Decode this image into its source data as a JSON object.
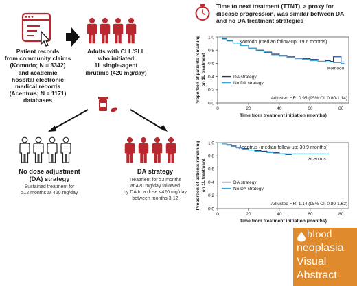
{
  "left": {
    "patient_records": [
      "Patient records",
      "from community claims",
      "(Komodo; N = 3342)",
      "and academic",
      "hospital electronic",
      "medical records",
      "(Acentrus; N = 1171)",
      "databases"
    ],
    "adults": [
      "Adults with CLL/SLL",
      "who initiated",
      "1L single-agent",
      "ibrutinib (420 mg/day)"
    ],
    "no_da_title": [
      "No dose adjustment",
      "(DA) strategy"
    ],
    "no_da_desc": [
      "Sustained treatment for",
      "≥12 months at 420 mg/day"
    ],
    "da_title": "DA strategy",
    "da_desc": [
      "Treatment for ≥3 months",
      "at 420 mg/day followed",
      "by DA to a dose <420 mg/day",
      "between months 3-12"
    ]
  },
  "header": {
    "title_lines": [
      "Time to next treatment (TTNT), a proxy for",
      "disease progression, was similar between DA",
      "and no DA treatment strategies"
    ]
  },
  "colors": {
    "red": "#b8282e",
    "dark_line": "#243b6b",
    "light_line": "#3aa9dc",
    "badge": "#e08a2e"
  },
  "chart_data": [
    {
      "type": "line",
      "title": "Komodo (median follow-up: 19.6 months)",
      "xlabel": "Time from treatment initiation (months)",
      "ylabel": [
        "Proportion of patients remaining",
        "on 1L treatment"
      ],
      "xlim": [
        0,
        85
      ],
      "ylim": [
        0,
        1.0
      ],
      "xticks": [
        0,
        20,
        40,
        60,
        80
      ],
      "yticks": [
        0.0,
        0.2,
        0.4,
        0.6,
        0.8,
        1.0
      ],
      "yticklabels": [
        "0.0",
        "0.2",
        "0.4",
        "0.6",
        "0.8",
        "1.0"
      ],
      "series": [
        {
          "name": "DA strategy",
          "x": [
            0,
            3,
            6,
            10,
            15,
            20,
            25,
            30,
            35,
            40,
            45,
            50,
            55,
            60,
            65,
            70,
            73,
            75,
            78,
            80,
            82
          ],
          "y": [
            1.0,
            0.97,
            0.94,
            0.91,
            0.87,
            0.83,
            0.8,
            0.77,
            0.74,
            0.72,
            0.7,
            0.68,
            0.67,
            0.66,
            0.65,
            0.64,
            0.63,
            0.7,
            0.7,
            0.62,
            0.62
          ]
        },
        {
          "name": "No DA strategy",
          "x": [
            0,
            3,
            6,
            10,
            15,
            20,
            25,
            30,
            35,
            40,
            45,
            50,
            55,
            60,
            65,
            70,
            75,
            80,
            82
          ],
          "y": [
            1.0,
            0.98,
            0.95,
            0.91,
            0.87,
            0.83,
            0.79,
            0.76,
            0.73,
            0.71,
            0.69,
            0.67,
            0.66,
            0.64,
            0.63,
            0.62,
            0.61,
            0.6,
            0.6
          ]
        }
      ],
      "end_label": "Komodo",
      "annotation": "Adjusted HR: 0.95 (95% CI: 0.80-1.14)"
    },
    {
      "type": "line",
      "title": "Acentrus (median follow-up: 30.9 months)",
      "xlabel": "Time from treatment initiation (months)",
      "ylabel": [
        "Proportion of patients remaining",
        "on 1L treatment"
      ],
      "xlim": [
        0,
        85
      ],
      "ylim": [
        0,
        1.0
      ],
      "xticks": [
        0,
        20,
        40,
        60,
        80
      ],
      "yticks": [
        0.0,
        0.2,
        0.4,
        0.6,
        0.8,
        1.0
      ],
      "yticklabels": [
        "0.0",
        "0.2",
        "0.4",
        "0.6",
        "0.8",
        "1.0"
      ],
      "series": [
        {
          "name": "DA strategy",
          "x": [
            0,
            3,
            6,
            9,
            12,
            16,
            20,
            24,
            28,
            32,
            36,
            40,
            44,
            48
          ],
          "y": [
            1.0,
            0.98,
            0.97,
            0.95,
            0.93,
            0.91,
            0.89,
            0.88,
            0.87,
            0.86,
            0.85,
            0.83,
            0.82,
            0.82
          ]
        },
        {
          "name": "No DA strategy",
          "x": [
            0,
            3,
            6,
            9,
            12,
            16,
            20,
            24,
            28,
            32,
            36,
            40,
            44,
            48,
            55,
            62,
            68,
            72
          ],
          "y": [
            1.0,
            0.98,
            0.96,
            0.94,
            0.92,
            0.9,
            0.89,
            0.87,
            0.86,
            0.85,
            0.84,
            0.83,
            0.83,
            0.83,
            0.83,
            0.83,
            0.83,
            0.83
          ]
        }
      ],
      "end_label": "Acentrus",
      "annotation": "Adjusted HR: 1.14 (95% CI: 0.80-1.62)"
    }
  ],
  "badge": {
    "lines": [
      "blood",
      "neoplasia",
      "Visual",
      "Abstract"
    ]
  },
  "icons": [
    "browser-cursor-icon",
    "arrow-right-icon",
    "arrow-down-left-icon",
    "arrow-down-right-icon",
    "pill-bottle-icon",
    "stopwatch-icon",
    "person-red-icon",
    "person-outline-icon",
    "blood-drop-icon"
  ]
}
